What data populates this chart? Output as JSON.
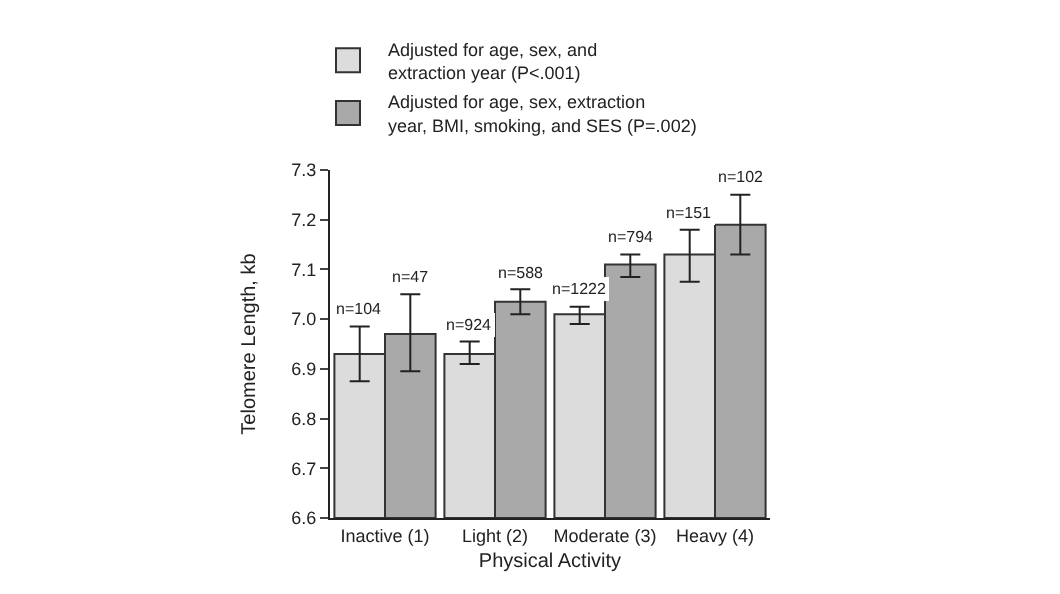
{
  "chart_data": {
    "type": "bar",
    "xlabel": "Physical Activity",
    "ylabel": "Telomere Length, kb",
    "categories": [
      "Inactive (1)",
      "Light (2)",
      "Moderate (3)",
      "Heavy (4)"
    ],
    "series": [
      {
        "name": "Adjusted for age, sex, and extraction year (P<.001)",
        "color": "#dcdcdc",
        "values": [
          6.93,
          6.93,
          7.01,
          7.13
        ],
        "errors": [
          [
            6.875,
            6.985
          ],
          [
            6.91,
            6.955
          ],
          [
            6.99,
            7.025
          ],
          [
            7.075,
            7.18
          ]
        ]
      },
      {
        "name": "Adjusted for age, sex, extraction year, BMI, smoking, and SES (P=.002)",
        "color": "#a9a9a9",
        "values": [
          6.97,
          7.035,
          7.11,
          7.19
        ],
        "errors": [
          [
            6.895,
            7.05
          ],
          [
            7.01,
            7.06
          ],
          [
            7.085,
            7.13
          ],
          [
            7.13,
            7.25
          ]
        ]
      }
    ],
    "annotations": [
      "n=104",
      "n=924",
      "n=1222",
      "n=151",
      "n=47",
      "n=588",
      "n=794",
      "n=102"
    ],
    "ylim": [
      6.6,
      7.3
    ],
    "yticks": [
      {
        "value": 6.6,
        "label": "6.6"
      },
      {
        "value": 6.7,
        "label": "6.7"
      },
      {
        "value": 6.8,
        "label": "6.8"
      },
      {
        "value": 6.9,
        "label": "6.9"
      },
      {
        "value": 7.0,
        "label": "7.0"
      },
      {
        "value": 7.1,
        "label": "7.1"
      },
      {
        "value": 7.2,
        "label": "7.2"
      },
      {
        "value": 7.3,
        "label": "7.3"
      }
    ],
    "legend": "top left"
  }
}
